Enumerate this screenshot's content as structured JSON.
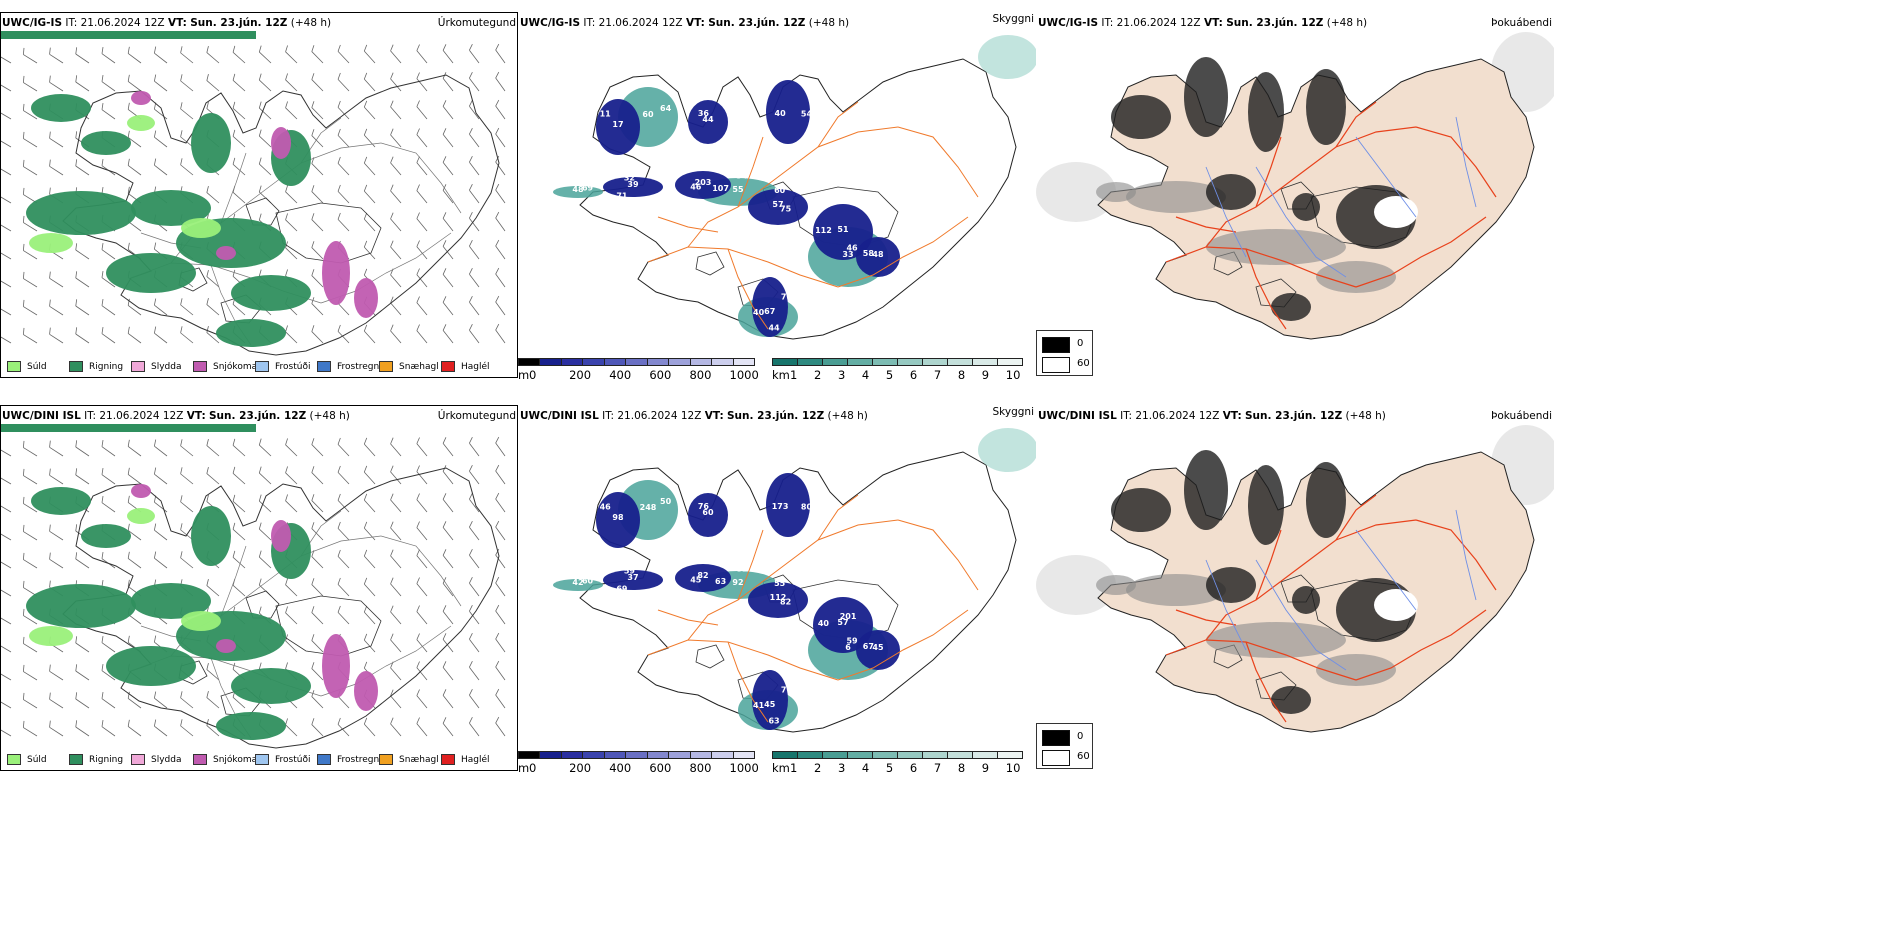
{
  "colors": {
    "land_beige": "#f2dfcf",
    "road_orange": "#f07a2c",
    "road_red": "#e8421c",
    "river_blue": "#6f8fe6",
    "rain_green": "#2f8f5e",
    "drizzle_green": "#9af07a",
    "snow_magenta": "#c05bb0",
    "vis_navy": "#17208c",
    "vis_teal": "#4aa39a"
  },
  "rows": [
    {
      "model": "UWC/IG-IS",
      "it_label": "IT:",
      "it_value": "21.06.2024 12Z",
      "vt_label": "VT:",
      "vt_value": "Sun. 23.jún. 12Z",
      "lead": "(+48 h)",
      "panel_titles": [
        "Úrkomutegund",
        "Skyggni",
        "Þokuábendi"
      ],
      "vis_labels": [
        "39",
        "46",
        "60",
        "51",
        "58",
        "70",
        "17",
        "36",
        "54",
        "55",
        "46",
        "44",
        "60",
        "69",
        "71",
        "203",
        "75",
        "112",
        "48",
        "67",
        "11",
        "44",
        "40",
        "34",
        "33",
        "40",
        "64",
        "48",
        "32",
        "107",
        "57"
      ]
    },
    {
      "model": "UWC/DINI ISL",
      "it_label": "IT:",
      "it_value": "21.06.2024 12Z",
      "vt_label": "VT:",
      "vt_value": "Sun. 23.jún. 12Z",
      "lead": "(+48 h)",
      "panel_titles": [
        "Úrkomutegund",
        "Skyggni",
        "Þokuábendi"
      ],
      "vis_labels": [
        "37",
        "45",
        "55",
        "57",
        "67",
        "77",
        "98",
        "76",
        "80",
        "92",
        "59",
        "63",
        "248",
        "60",
        "69",
        "82",
        "82",
        "40",
        "45",
        "45",
        "46",
        "60",
        "173",
        "81",
        "6",
        "41",
        "50",
        "42",
        "59",
        "63",
        "112",
        "201"
      ]
    }
  ],
  "precip_legend": [
    {
      "label": "Súld",
      "color": "#9af07a"
    },
    {
      "label": "Rigning",
      "color": "#2f8f5e"
    },
    {
      "label": "Slydda",
      "color": "#f0a8d8"
    },
    {
      "label": "Snjókoma",
      "color": "#c05bb0"
    },
    {
      "label": "Frostúði",
      "color": "#9fc6f0"
    },
    {
      "label": "Frostregn",
      "color": "#3f78c8"
    },
    {
      "label": "Snæhagl",
      "color": "#f0a020"
    },
    {
      "label": "Haglél",
      "color": "#e02020"
    }
  ],
  "ceiling_bar": {
    "unit": "m",
    "ticks": [
      "0",
      "200",
      "400",
      "600",
      "800",
      "1000"
    ],
    "colors": [
      "#000000",
      "#17208c",
      "#2a2fa0",
      "#3a43ad",
      "#4f57b8",
      "#6a70c4",
      "#8388cf",
      "#9da1da",
      "#b5b8e4",
      "#ccceed",
      "#e3e4f5"
    ]
  },
  "visibility_bar": {
    "unit": "km",
    "ticks": [
      "1",
      "2",
      "3",
      "4",
      "5",
      "6",
      "7",
      "8",
      "9",
      "10"
    ],
    "colors": [
      "#17756c",
      "#2e8a80",
      "#4a9d93",
      "#64aea4",
      "#7dbcb3",
      "#96c9c1",
      "#aed5ce",
      "#c4e0db",
      "#d9eae7",
      "#ecf4f2"
    ]
  },
  "fog_legend": [
    {
      "label": "0",
      "color": "#000000"
    },
    {
      "label": "60",
      "color": "#ffffff"
    }
  ]
}
